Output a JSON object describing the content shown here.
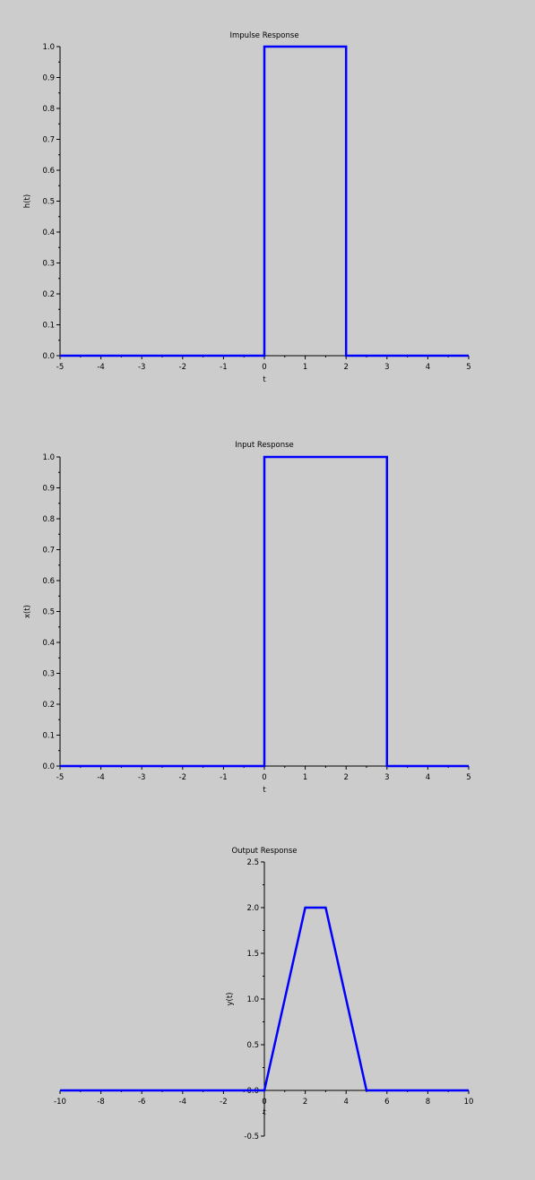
{
  "chart_data": [
    {
      "type": "line",
      "title": "Impulse Response",
      "xlabel": "t",
      "ylabel": "h(t)",
      "xlim": [
        -5,
        5
      ],
      "ylim": [
        0,
        1
      ],
      "grid": false,
      "legend": "none",
      "color": "#0000ff",
      "xticks": [
        "-5",
        "-4",
        "-3",
        "-2",
        "-1",
        "0",
        "1",
        "2",
        "3",
        "4",
        "5"
      ],
      "yticks": [
        "0.0",
        "0.1",
        "0.2",
        "0.3",
        "0.4",
        "0.5",
        "0.6",
        "0.7",
        "0.8",
        "0.9",
        "1.0"
      ],
      "series": [
        {
          "x": [
            -5,
            0,
            0,
            2,
            2,
            5
          ],
          "y": [
            0,
            0,
            1,
            1,
            0,
            0
          ]
        }
      ]
    },
    {
      "type": "line",
      "title": "Input Response",
      "xlabel": "t",
      "ylabel": "x(t)",
      "xlim": [
        -5,
        5
      ],
      "ylim": [
        0,
        1
      ],
      "grid": false,
      "legend": "none",
      "color": "#0000ff",
      "xticks": [
        "-5",
        "-4",
        "-3",
        "-2",
        "-1",
        "0",
        "1",
        "2",
        "3",
        "4",
        "5"
      ],
      "yticks": [
        "0.0",
        "0.1",
        "0.2",
        "0.3",
        "0.4",
        "0.5",
        "0.6",
        "0.7",
        "0.8",
        "0.9",
        "1.0"
      ],
      "series": [
        {
          "x": [
            -5,
            0,
            0,
            3,
            3,
            5
          ],
          "y": [
            0,
            0,
            1,
            1,
            0,
            0
          ]
        }
      ]
    },
    {
      "type": "line",
      "title": "Output Response",
      "xlabel": "t",
      "ylabel": "y(t)",
      "xlim": [
        -10,
        10
      ],
      "ylim": [
        -0.5,
        2.5
      ],
      "grid": false,
      "legend": "none",
      "color": "#0000ff",
      "axes_origin": "centered",
      "xticks": [
        "-10",
        "-8",
        "-6",
        "-4",
        "-2",
        "0",
        "2",
        "4",
        "6",
        "8",
        "10"
      ],
      "yticks": [
        "-0.5",
        "0.0",
        "0.5",
        "1.0",
        "1.5",
        "2.0",
        "2.5"
      ],
      "series": [
        {
          "x": [
            -10,
            0,
            2,
            3,
            5,
            10
          ],
          "y": [
            0,
            0,
            2,
            2,
            0,
            0
          ]
        }
      ]
    }
  ]
}
